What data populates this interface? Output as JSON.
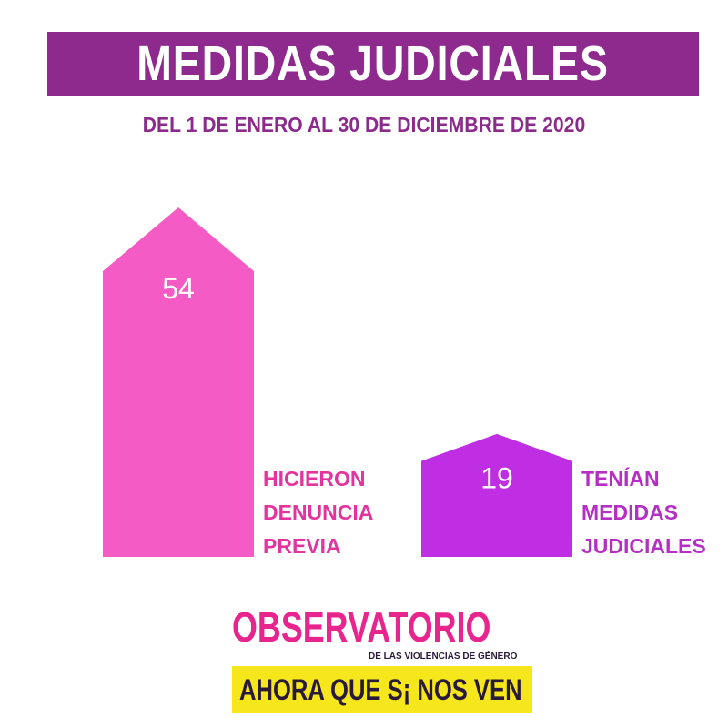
{
  "header": {
    "title": "MEDIDAS JUDICIALES",
    "subtitle": "DEL 1 DE ENERO AL 30 DE DICIEMBRE DE 2020"
  },
  "colors": {
    "banner": "#8e2a8e",
    "subtitle": "#8b2b8b",
    "bar_pink": "#f45bc4",
    "bar_purple": "#c02ee3",
    "label_pink": "#e3349e",
    "label_purple": "#b52fc4",
    "logo_pink": "#e8248f",
    "logo_yellow": "#f5e71b",
    "logo_dark": "#2a1a3a"
  },
  "chart_data": {
    "type": "bar",
    "categories": [
      "HICIERON DENUNCIA PREVIA",
      "TENÍAN MEDIDAS JUDICIALES"
    ],
    "values": [
      54,
      19
    ],
    "label_lines": [
      [
        "HICIERON",
        "DENUNCIA",
        "PREVIA"
      ],
      [
        "TENÍAN",
        "MEDIDAS",
        "JUDICIALES"
      ]
    ],
    "title": "MEDIDAS JUDICIALES",
    "subtitle": "DEL 1 DE ENERO AL 30 DE DICIEMBRE DE 2020",
    "xlabel": "",
    "ylabel": "",
    "ylim": [
      0,
      54
    ],
    "grid": false,
    "legend": "none"
  },
  "logo": {
    "main": "OBSERVATORIO",
    "sub": "DE LAS VIOLENCIAS DE GÉNERO",
    "bar": "AHORA QUE S¡ NOS VEN"
  }
}
